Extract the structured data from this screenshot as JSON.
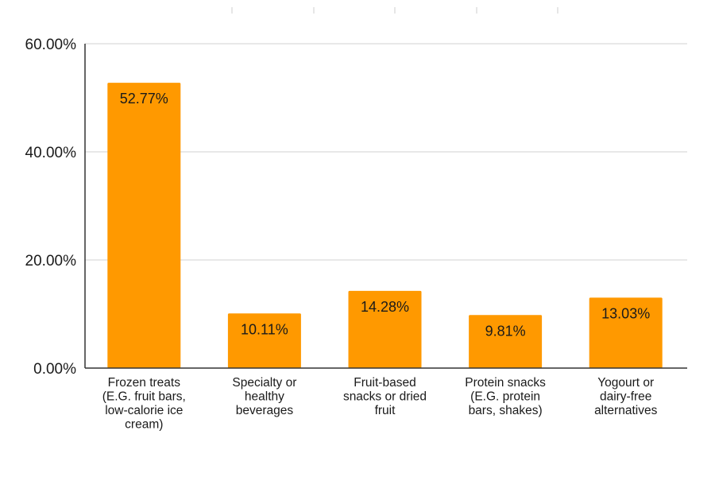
{
  "chart_data": {
    "type": "bar",
    "title": "",
    "xlabel": "",
    "ylabel": "",
    "categories": [
      [
        "Frozen treats",
        "(E.G. fruit bars,",
        "low-calorie ice",
        "cream)"
      ],
      [
        "Specialty or",
        "healthy",
        "beverages"
      ],
      [
        "Fruit-based",
        "snacks or dried",
        "fruit"
      ],
      [
        "Protein snacks",
        "(E.G. protein",
        "bars, shakes)"
      ],
      [
        "Yogourt or",
        "dairy-free",
        "alternatives"
      ]
    ],
    "values": [
      52.77,
      10.11,
      14.28,
      9.81,
      13.03
    ],
    "data_labels": [
      "52.77%",
      "10.11%",
      "14.28%",
      "9.81%",
      "13.03%"
    ],
    "ylim": [
      0,
      60
    ],
    "yticks": [
      0,
      20,
      40,
      60
    ],
    "ytick_labels": [
      "0.00%",
      "20.00%",
      "40.00%",
      "60.00%"
    ],
    "grid": true,
    "legend": "none",
    "colors": {
      "bar": "#ff9900",
      "grid": "#d9d9d9",
      "axis": "#333333"
    }
  }
}
